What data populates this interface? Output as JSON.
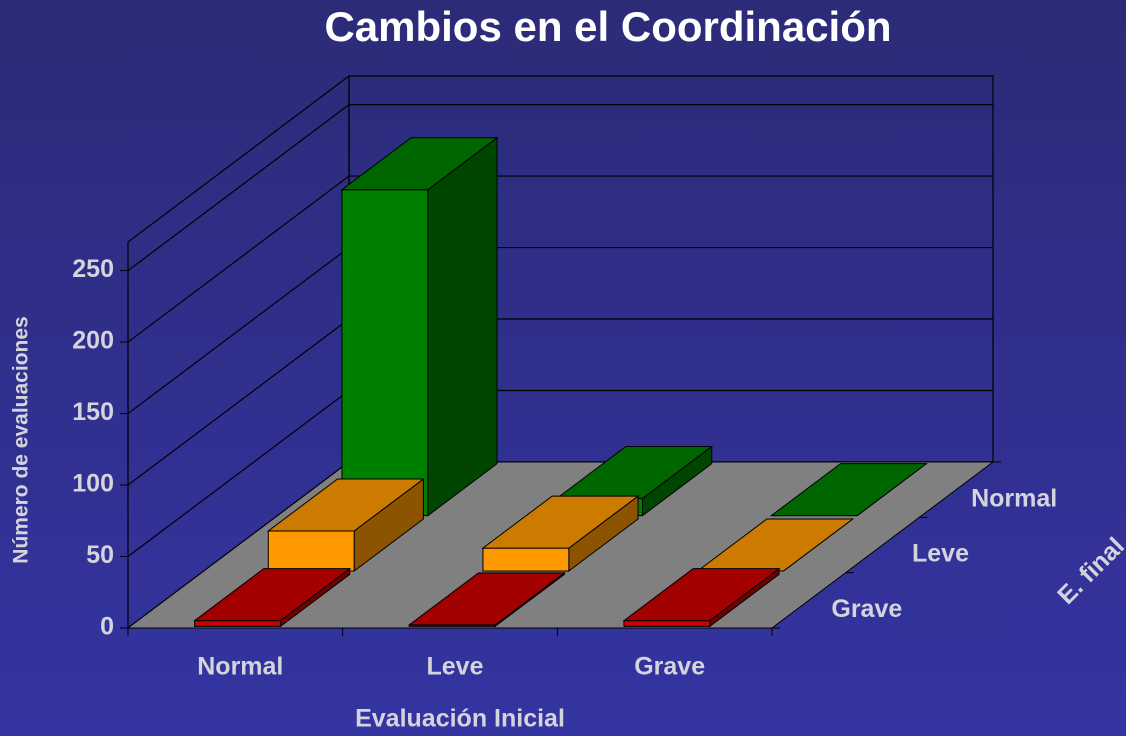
{
  "chart_data": {
    "type": "bar3d",
    "title": "Cambios en el Coordinación",
    "x_label": "Evaluación Inicial",
    "y_label": "Número de evaluaciones",
    "z_label": "E. final",
    "categories": [
      "Normal",
      "Leve",
      "Grave"
    ],
    "series": [
      {
        "name": "Grave",
        "color": "#cc0000",
        "values": [
          4,
          1,
          4
        ]
      },
      {
        "name": "Leve",
        "color": "#ff9900",
        "values": [
          28,
          16,
          0
        ]
      },
      {
        "name": "Normal",
        "color": "#008000",
        "values": [
          228,
          12,
          0
        ]
      }
    ],
    "ylim": [
      0,
      270
    ],
    "yticks": [
      0,
      50,
      100,
      150,
      200,
      250
    ],
    "grid": true
  }
}
